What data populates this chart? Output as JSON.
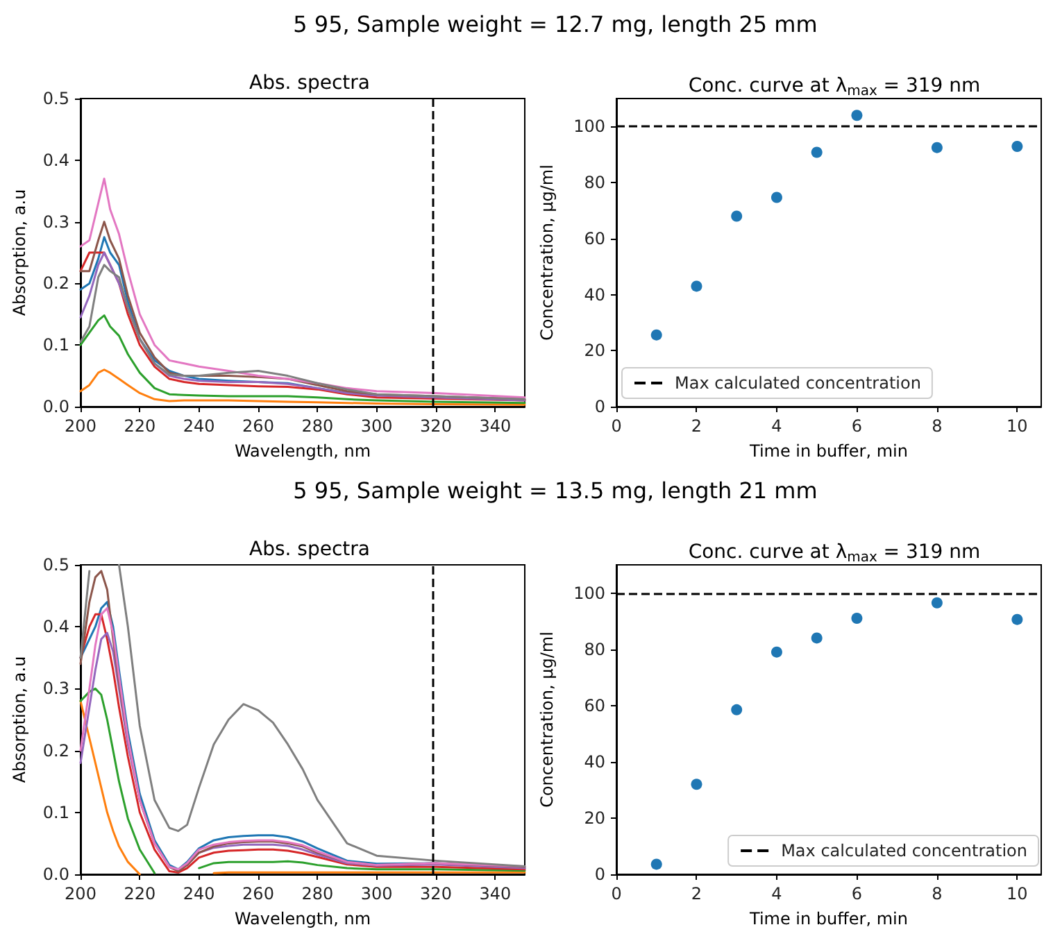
{
  "chart_data": [
    {
      "type": "line",
      "title": "Abs. spectra",
      "xlabel": "Wavelength, nm",
      "ylabel": "Absorption, a.u",
      "annotations": [
        "5 95, Sample weight = 12.7 mg, length 25 mm"
      ],
      "x": [
        200,
        203,
        206,
        208,
        210,
        213,
        216,
        220,
        225,
        230,
        235,
        240,
        250,
        260,
        270,
        280,
        290,
        300,
        320,
        350
      ],
      "series": [
        {
          "color": "#1f77b4",
          "values": [
            0.19,
            0.2,
            0.24,
            0.275,
            0.25,
            0.23,
            0.17,
            0.11,
            0.075,
            0.058,
            0.05,
            0.045,
            0.042,
            0.04,
            0.038,
            0.03,
            0.022,
            0.018,
            null,
            null
          ]
        },
        {
          "color": "#ff7f0e",
          "values": [
            0.025,
            0.035,
            0.055,
            0.06,
            0.055,
            0.045,
            0.035,
            0.022,
            0.012,
            0.009,
            0.01,
            0.01,
            0.01,
            0.009,
            0.008,
            0.007,
            0.006,
            0.005,
            0.004,
            0.003
          ]
        },
        {
          "color": "#2ca02c",
          "values": [
            0.1,
            0.12,
            0.14,
            0.148,
            0.13,
            0.115,
            0.085,
            0.055,
            0.03,
            0.02,
            0.019,
            0.018,
            0.017,
            0.017,
            0.017,
            0.015,
            0.012,
            0.01,
            0.008,
            0.006
          ]
        },
        {
          "color": "#d62728",
          "values": [
            0.22,
            0.25,
            0.25,
            0.25,
            0.23,
            0.2,
            0.15,
            0.1,
            0.065,
            0.045,
            0.04,
            0.037,
            0.035,
            0.033,
            0.032,
            0.028,
            0.02,
            0.015,
            0.013,
            0.01
          ]
        },
        {
          "color": "#9467bd",
          "values": [
            0.145,
            0.18,
            0.23,
            0.25,
            0.23,
            0.2,
            0.16,
            0.11,
            0.07,
            0.05,
            0.045,
            0.042,
            0.04,
            0.04,
            0.037,
            0.03,
            0.022,
            0.018,
            0.015,
            0.01
          ]
        },
        {
          "color": "#8c564b",
          "values": [
            0.22,
            0.22,
            0.27,
            0.3,
            0.27,
            0.24,
            0.18,
            0.12,
            0.08,
            0.055,
            0.05,
            0.05,
            0.05,
            0.048,
            0.045,
            0.035,
            0.025,
            0.02,
            0.017,
            0.012
          ]
        },
        {
          "color": "#e377c2",
          "values": [
            0.26,
            0.27,
            0.33,
            0.37,
            0.32,
            0.28,
            0.22,
            0.15,
            0.1,
            0.075,
            0.07,
            0.065,
            0.058,
            0.05,
            0.045,
            0.038,
            0.03,
            0.025,
            0.022,
            0.015
          ]
        },
        {
          "color": "#7f7f7f",
          "values": [
            0.105,
            0.13,
            0.21,
            0.23,
            0.22,
            0.21,
            0.16,
            0.11,
            0.07,
            0.052,
            0.05,
            0.05,
            0.055,
            0.058,
            0.05,
            0.038,
            0.028,
            0.02,
            0.017,
            0.012
          ]
        }
      ],
      "xlim": [
        200,
        350
      ],
      "xticks": [
        200,
        220,
        240,
        260,
        280,
        300,
        320,
        340
      ],
      "ylim": [
        0,
        0.5
      ],
      "yticks": [
        {
          "value": 0,
          "label": "0.0"
        },
        0.1,
        0.2,
        0.3,
        0.4,
        0.5
      ],
      "ref_lines": [
        {
          "axis": "x",
          "value": 319,
          "color": "#000000",
          "line_style": "dashed"
        }
      ],
      "marker": "none"
    },
    {
      "type": "scatter",
      "title": "Conc. curve at λ$_{max}$ = 319 nm",
      "xlabel": "Time in buffer, min",
      "ylabel": "Concentration, μg/ml",
      "x": [
        1,
        2,
        3,
        4,
        5,
        6,
        8,
        10
      ],
      "series": [
        {
          "color": "#1f77b4",
          "values": [
            25.6,
            43,
            68,
            74.7,
            90.8,
            104,
            92.5,
            92.9
          ]
        }
      ],
      "xlim": [
        0,
        10.6
      ],
      "xticks": [
        0,
        2,
        4,
        6,
        8,
        10
      ],
      "ylim": [
        0,
        110
      ],
      "yticks": [
        0,
        20,
        40,
        60,
        80,
        100
      ],
      "ref_lines": [
        {
          "axis": "y",
          "value": 100,
          "label": "Max calculated concentration",
          "color": "#000000",
          "line_style": "dashed"
        }
      ],
      "marker": "circle",
      "legend": "bottom left"
    },
    {
      "type": "line",
      "title": "Abs. spectra",
      "xlabel": "Wavelength, nm",
      "ylabel": "Absorption, a.u",
      "annotations": [
        "5 95, Sample weight = 13.5 mg, length 21 mm"
      ],
      "x": [
        200,
        203,
        205,
        207,
        209,
        211,
        213,
        216,
        220,
        225,
        230,
        233,
        236,
        240,
        245,
        250,
        255,
        260,
        265,
        270,
        275,
        280,
        290,
        300,
        320,
        350
      ],
      "series": [
        {
          "color": "#1f77b4",
          "values": [
            0.35,
            0.38,
            0.4,
            0.43,
            0.44,
            0.4,
            0.33,
            0.23,
            0.13,
            0.055,
            0.015,
            0.008,
            0.02,
            0.042,
            0.055,
            0.06,
            0.062,
            0.063,
            0.063,
            0.06,
            0.053,
            0.042,
            0.022,
            0.017,
            0.018,
            0.01
          ]
        },
        {
          "color": "#ff7f0e",
          "values": [
            0.28,
            0.22,
            0.18,
            0.14,
            0.1,
            0.07,
            0.045,
            0.02,
            0.0,
            null,
            null,
            null,
            null,
            null,
            0.002,
            0.003,
            0.003,
            0.003,
            0.003,
            0.003,
            0.003,
            0.003,
            0.003,
            0.003,
            0.003,
            0.003
          ]
        },
        {
          "color": "#2ca02c",
          "values": [
            0.28,
            0.295,
            0.3,
            0.29,
            0.25,
            0.2,
            0.15,
            0.09,
            0.04,
            0.002,
            null,
            null,
            null,
            0.01,
            0.018,
            0.02,
            0.02,
            0.02,
            0.02,
            0.021,
            0.019,
            0.015,
            0.01,
            0.008,
            0.008,
            0.006
          ]
        },
        {
          "color": "#d62728",
          "values": [
            0.35,
            0.4,
            0.42,
            0.42,
            0.38,
            0.33,
            0.27,
            0.19,
            0.1,
            0.04,
            0.005,
            0.003,
            0.01,
            0.027,
            0.035,
            0.038,
            0.039,
            0.04,
            0.04,
            0.038,
            0.034,
            0.028,
            0.016,
            0.012,
            0.012,
            0.008
          ]
        },
        {
          "color": "#9467bd",
          "values": [
            0.18,
            0.27,
            0.33,
            0.38,
            0.39,
            0.36,
            0.3,
            0.21,
            0.12,
            0.05,
            0.012,
            0.006,
            0.015,
            0.035,
            0.043,
            0.046,
            0.048,
            0.048,
            0.048,
            0.046,
            0.04,
            0.032,
            0.018,
            0.014,
            0.016,
            0.01
          ]
        },
        {
          "color": "#8c564b",
          "values": [
            0.34,
            0.44,
            0.48,
            0.49,
            0.46,
            0.38,
            0.31,
            0.22,
            0.12,
            0.05,
            0.012,
            0.005,
            0.015,
            0.035,
            0.045,
            0.05,
            0.052,
            0.053,
            0.053,
            0.05,
            0.045,
            0.035,
            0.02,
            0.015,
            0.018,
            0.012
          ]
        },
        {
          "color": "#e377c2",
          "values": [
            0.2,
            0.3,
            0.37,
            0.42,
            0.43,
            0.39,
            0.32,
            0.22,
            0.12,
            0.05,
            0.012,
            0.008,
            0.018,
            0.04,
            0.048,
            0.052,
            0.054,
            0.055,
            0.055,
            0.052,
            0.047,
            0.037,
            0.02,
            0.015,
            0.018,
            0.013
          ]
        },
        {
          "color": "#7f7f7f",
          "values": [
            0.35,
            0.49,
            null,
            null,
            null,
            null,
            0.5,
            0.4,
            0.24,
            0.12,
            0.075,
            0.07,
            0.08,
            0.14,
            0.21,
            0.25,
            0.275,
            0.265,
            0.245,
            0.21,
            0.17,
            0.12,
            0.05,
            0.03,
            0.022,
            0.013
          ]
        }
      ],
      "xlim": [
        200,
        350
      ],
      "xticks": [
        200,
        220,
        240,
        260,
        280,
        300,
        320,
        340
      ],
      "ylim": [
        0,
        0.5
      ],
      "yticks": [
        {
          "value": 0,
          "label": "0.0"
        },
        0.1,
        0.2,
        0.3,
        0.4,
        0.5
      ],
      "ref_lines": [
        {
          "axis": "x",
          "value": 319,
          "color": "#000000",
          "line_style": "dashed"
        }
      ],
      "marker": "none"
    },
    {
      "type": "scatter",
      "title": "Conc. curve at λ$_{max}$ = 319 nm",
      "xlabel": "Time in buffer, min",
      "ylabel": "Concentration, μg/ml",
      "x": [
        1,
        2,
        3,
        4,
        5,
        6,
        8,
        10
      ],
      "series": [
        {
          "color": "#1f77b4",
          "values": [
            3.6,
            32,
            58.5,
            79,
            84,
            91,
            96.5,
            90.6
          ]
        }
      ],
      "xlim": [
        0,
        10.6
      ],
      "xticks": [
        0,
        2,
        4,
        6,
        8,
        10
      ],
      "ylim": [
        0,
        110
      ],
      "yticks": [
        0,
        20,
        40,
        60,
        80,
        100
      ],
      "ref_lines": [
        {
          "axis": "y",
          "value": 100,
          "label": "Max calculated concentration",
          "color": "#000000",
          "line_style": "dashed"
        }
      ],
      "marker": "circle",
      "legend": "bottom right"
    }
  ]
}
